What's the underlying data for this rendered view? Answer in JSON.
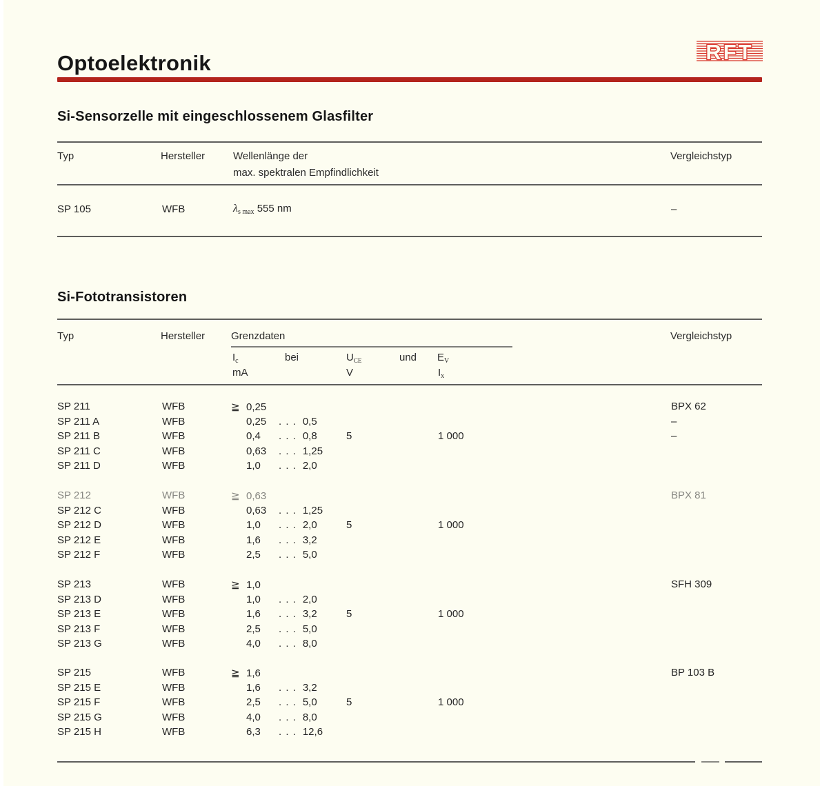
{
  "page": {
    "title": "Optoelektronik",
    "logo_text": "RFT",
    "accent_red": "#b3241c",
    "logo_red": "#d8352b",
    "paper": "#fdfdf1"
  },
  "sensor_section": {
    "heading": "Si-Sensorzelle mit eingeschlossenem Glasfilter",
    "columns": {
      "typ": "Typ",
      "hersteller": "Hersteller",
      "wellenlaenge_line1": "Wellenlänge der",
      "wellenlaenge_line2": "max. spektralen Empfindlichkeit",
      "vergleichstyp": "Vergleichstyp"
    },
    "row": {
      "typ": "SP 105",
      "hersteller": "WFB",
      "lambda": "λ",
      "lambda_sub": "s max",
      "wert": "555 nm",
      "vergleichstyp": "–"
    }
  },
  "foto_section": {
    "heading": "Si-Fototransistoren",
    "columns": {
      "typ": "Typ",
      "hersteller": "Hersteller",
      "grenzdaten": "Grenzdaten",
      "vergleichstyp": "Vergleichstyp"
    },
    "subheader": {
      "ic": "I",
      "ic_sub": "c",
      "ic_unit": "mA",
      "bei": "bei",
      "uce": "U",
      "uce_sub": "CE",
      "uce_unit": "V",
      "und": "und",
      "ev": "E",
      "ev_sub": "V",
      "ev_unit": "I",
      "ev_unit_sub": "x"
    },
    "ge_symbol": "≧",
    "dots": ". . .",
    "groups": [
      {
        "rows": [
          {
            "typ": "SP 211",
            "hersteller": "WFB",
            "ge": true,
            "ic_von": "0,25",
            "ic_bis": "",
            "uce": "",
            "ev": "",
            "vergleichstyp": "BPX 62"
          },
          {
            "typ": "SP 211 A",
            "hersteller": "WFB",
            "ge": false,
            "ic_von": "0,25",
            "ic_bis": "0,5",
            "uce": "",
            "ev": "",
            "vergleichstyp": "–"
          },
          {
            "typ": "SP 211 B",
            "hersteller": "WFB",
            "ge": false,
            "ic_von": "0,4",
            "ic_bis": "0,8",
            "uce": "5",
            "ev": "1 000",
            "vergleichstyp": "–"
          },
          {
            "typ": "SP 211 C",
            "hersteller": "WFB",
            "ge": false,
            "ic_von": "0,63",
            "ic_bis": "1,25",
            "uce": "",
            "ev": "",
            "vergleichstyp": ""
          },
          {
            "typ": "SP 211 D",
            "hersteller": "WFB",
            "ge": false,
            "ic_von": "1,0",
            "ic_bis": "2,0",
            "uce": "",
            "ev": "",
            "vergleichstyp": ""
          }
        ]
      },
      {
        "rows": [
          {
            "typ": "SP 212",
            "hersteller": "WFB",
            "ge": true,
            "ic_von": "0,63",
            "ic_bis": "",
            "uce": "",
            "ev": "",
            "vergleichstyp": "BPX 81",
            "faded": true
          },
          {
            "typ": "SP 212 C",
            "hersteller": "WFB",
            "ge": false,
            "ic_von": "0,63",
            "ic_bis": "1,25",
            "uce": "",
            "ev": "",
            "vergleichstyp": ""
          },
          {
            "typ": "SP 212 D",
            "hersteller": "WFB",
            "ge": false,
            "ic_von": "1,0",
            "ic_bis": "2,0",
            "uce": "5",
            "ev": "1 000",
            "vergleichstyp": ""
          },
          {
            "typ": "SP 212 E",
            "hersteller": "WFB",
            "ge": false,
            "ic_von": "1,6",
            "ic_bis": "3,2",
            "uce": "",
            "ev": "",
            "vergleichstyp": ""
          },
          {
            "typ": "SP 212 F",
            "hersteller": "WFB",
            "ge": false,
            "ic_von": "2,5",
            "ic_bis": "5,0",
            "uce": "",
            "ev": "",
            "vergleichstyp": ""
          }
        ]
      },
      {
        "rows": [
          {
            "typ": "SP 213",
            "hersteller": "WFB",
            "ge": true,
            "ic_von": "1,0",
            "ic_bis": "",
            "uce": "",
            "ev": "",
            "vergleichstyp": "SFH 309"
          },
          {
            "typ": "SP 213 D",
            "hersteller": "WFB",
            "ge": false,
            "ic_von": "1,0",
            "ic_bis": "2,0",
            "uce": "",
            "ev": "",
            "vergleichstyp": ""
          },
          {
            "typ": "SP 213 E",
            "hersteller": "WFB",
            "ge": false,
            "ic_von": "1,6",
            "ic_bis": "3,2",
            "uce": "5",
            "ev": "1 000",
            "vergleichstyp": ""
          },
          {
            "typ": "SP 213 F",
            "hersteller": "WFB",
            "ge": false,
            "ic_von": "2,5",
            "ic_bis": "5,0",
            "uce": "",
            "ev": "",
            "vergleichstyp": ""
          },
          {
            "typ": "SP 213 G",
            "hersteller": "WFB",
            "ge": false,
            "ic_von": "4,0",
            "ic_bis": "8,0",
            "uce": "",
            "ev": "",
            "vergleichstyp": ""
          }
        ]
      },
      {
        "rows": [
          {
            "typ": "SP 215",
            "hersteller": "WFB",
            "ge": true,
            "ic_von": "1,6",
            "ic_bis": "",
            "uce": "",
            "ev": "",
            "vergleichstyp": "BP 103 B"
          },
          {
            "typ": "SP 215 E",
            "hersteller": "WFB",
            "ge": false,
            "ic_von": "1,6",
            "ic_bis": "3,2",
            "uce": "",
            "ev": "",
            "vergleichstyp": ""
          },
          {
            "typ": "SP 215 F",
            "hersteller": "WFB",
            "ge": false,
            "ic_von": "2,5",
            "ic_bis": "5,0",
            "uce": "5",
            "ev": "1 000",
            "vergleichstyp": ""
          },
          {
            "typ": "SP 215 G",
            "hersteller": "WFB",
            "ge": false,
            "ic_von": "4,0",
            "ic_bis": "8,0",
            "uce": "",
            "ev": "",
            "vergleichstyp": ""
          },
          {
            "typ": "SP 215 H",
            "hersteller": "WFB",
            "ge": false,
            "ic_von": "6,3",
            "ic_bis": "12,6",
            "uce": "",
            "ev": "",
            "vergleichstyp": ""
          }
        ]
      }
    ]
  }
}
